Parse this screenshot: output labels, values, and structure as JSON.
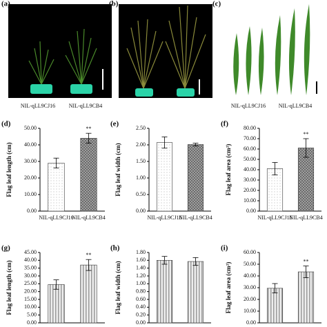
{
  "photos": [
    {
      "panel": "(a)",
      "labels": [
        "NIL-qLL9CJ16",
        "NIL-qLL9CB4"
      ]
    },
    {
      "panel": "(b)"
    },
    {
      "panel": "(c)",
      "labels": [
        "NIL-qLL9CJ16",
        "NIL-qLL9CB4"
      ]
    }
  ],
  "chart_data": [
    {
      "type": "bar",
      "panel": "(d)",
      "y_label": "Flag leaf length (cm)",
      "categories": [
        "NIL-qLL9CJ16",
        "NIL-qLL9CB4"
      ],
      "values": [
        29,
        44
      ],
      "errors": [
        3,
        3
      ],
      "fills": [
        "dots",
        "crosshatch"
      ],
      "annotations": [
        {
          "text": "**",
          "at": 1
        }
      ],
      "ylim": [
        0,
        50
      ],
      "yticks": [
        {
          "value": 0,
          "label": "0.00"
        },
        {
          "value": 10,
          "label": "10.00"
        },
        {
          "value": 20,
          "label": "20.00"
        },
        {
          "value": 30,
          "label": "30.00"
        },
        {
          "value": 40,
          "label": "40.00"
        },
        {
          "value": 50,
          "label": "50.00"
        }
      ]
    },
    {
      "type": "bar",
      "panel": "(e)",
      "y_label": "Flag leaf width (cm)",
      "categories": [
        "NIL-qLL9CJ16",
        "NIL-qLL9CB4"
      ],
      "values": [
        2.07,
        2.01
      ],
      "errors": [
        0.17,
        0.04
      ],
      "fills": [
        "dots",
        "crosshatch"
      ],
      "annotations": [],
      "ylim": [
        0,
        2.5
      ],
      "yticks": [
        {
          "value": 0,
          "label": "0.00"
        },
        {
          "value": 0.5,
          "label": "0.50"
        },
        {
          "value": 1,
          "label": "1.00"
        },
        {
          "value": 1.5,
          "label": "1.50"
        },
        {
          "value": 2,
          "label": "2.00"
        },
        {
          "value": 2.5,
          "label": "2.50"
        }
      ]
    },
    {
      "type": "bar",
      "panel": "(f)",
      "y_label": "Flag leaf area (cm²)",
      "categories": [
        "NIL-qLL9CJ16",
        "NIL-qLL9CB4"
      ],
      "values": [
        41,
        61
      ],
      "errors": [
        6,
        9
      ],
      "fills": [
        "dots",
        "crosshatch"
      ],
      "annotations": [
        {
          "text": "**",
          "at": 1
        }
      ],
      "ylim": [
        0,
        80
      ],
      "yticks": [
        {
          "value": 0,
          "label": "0.00"
        },
        {
          "value": 10,
          "label": "10.00"
        },
        {
          "value": 20,
          "label": "20.00"
        },
        {
          "value": 30,
          "label": "30.00"
        },
        {
          "value": 40,
          "label": "40.00"
        },
        {
          "value": 50,
          "label": "50.00"
        },
        {
          "value": 60,
          "label": "60.00"
        },
        {
          "value": 70,
          "label": "70.00"
        },
        {
          "value": 80,
          "label": "80.00"
        }
      ]
    },
    {
      "type": "bar",
      "panel": "(g)",
      "y_label": "Flag leaf length (cm)",
      "values": [
        24.5,
        37
      ],
      "errors": [
        3,
        3.5
      ],
      "fills": [
        "stripes",
        "stripes"
      ],
      "annotations": [
        {
          "text": "**",
          "at": 1
        }
      ],
      "ylim": [
        0,
        45
      ],
      "yticks": [
        {
          "value": 0,
          "label": "0.00"
        },
        {
          "value": 5,
          "label": "5.00"
        },
        {
          "value": 10,
          "label": "10.00"
        },
        {
          "value": 15,
          "label": "15.00"
        },
        {
          "value": 20,
          "label": "20.00"
        },
        {
          "value": 25,
          "label": "25.00"
        },
        {
          "value": 30,
          "label": "30.00"
        },
        {
          "value": 35,
          "label": "35.00"
        },
        {
          "value": 40,
          "label": "40.00"
        },
        {
          "value": 45,
          "label": "45.00"
        }
      ]
    },
    {
      "type": "bar",
      "panel": "(h)",
      "y_label": "Flag leaf width (cm)",
      "values": [
        1.6,
        1.57
      ],
      "errors": [
        0.1,
        0.1
      ],
      "fills": [
        "stripes",
        "stripes"
      ],
      "annotations": [],
      "ylim": [
        0,
        1.8
      ],
      "yticks": [
        {
          "value": 0,
          "label": "0.00"
        },
        {
          "value": 0.2,
          "label": "0.20"
        },
        {
          "value": 0.4,
          "label": "0.40"
        },
        {
          "value": 0.6,
          "label": "0.60"
        },
        {
          "value": 0.8,
          "label": "0.80"
        },
        {
          "value": 1,
          "label": "1.00"
        },
        {
          "value": 1.2,
          "label": "1.20"
        },
        {
          "value": 1.4,
          "label": "1.40"
        },
        {
          "value": 1.6,
          "label": "1.60"
        },
        {
          "value": 1.8,
          "label": "1.80"
        }
      ]
    },
    {
      "type": "bar",
      "panel": "(i)",
      "y_label": "Flag leaf area (cm²)",
      "values": [
        29.5,
        43.5
      ],
      "errors": [
        4,
        5
      ],
      "fills": [
        "stripes",
        "stripes"
      ],
      "annotations": [
        {
          "text": "**",
          "at": 1
        }
      ],
      "ylim": [
        0,
        60
      ],
      "yticks": [
        {
          "value": 0,
          "label": "0.00"
        },
        {
          "value": 10,
          "label": "10.00"
        },
        {
          "value": 20,
          "label": "20.00"
        },
        {
          "value": 30,
          "label": "30.00"
        },
        {
          "value": 40,
          "label": "40.00"
        },
        {
          "value": 50,
          "label": "50.00"
        },
        {
          "value": 60,
          "label": "60.00"
        }
      ]
    }
  ]
}
